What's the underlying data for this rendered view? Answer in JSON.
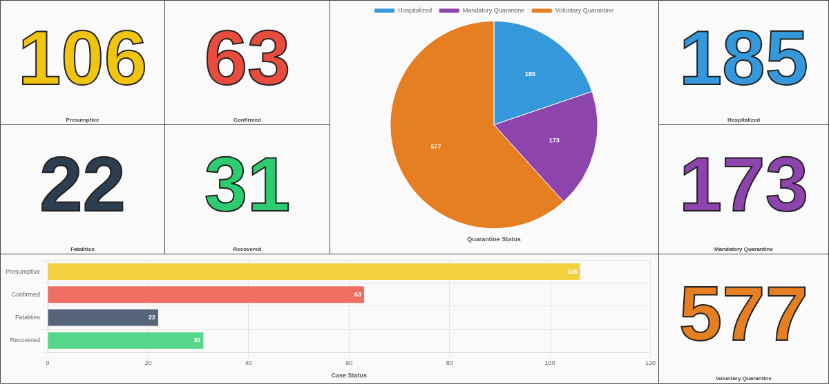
{
  "chart_data": [
    {
      "type": "other",
      "title": "Presumptive",
      "annotations": [
        "106"
      ],
      "color": "#f1c40f"
    },
    {
      "type": "other",
      "title": "Confirmed",
      "annotations": [
        "63"
      ],
      "color": "#e74c3c"
    },
    {
      "type": "pie",
      "title": "Quarantine Status",
      "categories": [
        "Hospitalized",
        "Mandatory Quarantine",
        "Voluntary Quarantine"
      ],
      "values": [
        185,
        173,
        577
      ],
      "colors": [
        "#3498db",
        "#8e44ad",
        "#e67e22"
      ],
      "data_labels": true,
      "legend": "top"
    },
    {
      "type": "other",
      "title": "Hospitalized",
      "annotations": [
        "185"
      ],
      "color": "#3498db"
    },
    {
      "type": "other",
      "title": "Fatalities",
      "annotations": [
        "22"
      ],
      "color": "#2c3e50"
    },
    {
      "type": "other",
      "title": "Recovered",
      "annotations": [
        "31"
      ],
      "color": "#2ecc71"
    },
    {
      "type": "other",
      "title": "Mandatory Quarantine",
      "annotations": [
        "173"
      ],
      "color": "#8e44ad"
    },
    {
      "type": "bar",
      "orientation": "horizontal",
      "xlabel": "Case Status",
      "categories": [
        "Presumptive",
        "Confirmed",
        "Fatalities",
        "Recovered"
      ],
      "values": [
        106,
        63,
        22,
        31
      ],
      "colors": [
        "#f3d03f",
        "#ee6e62",
        "#56657a",
        "#55d68b"
      ],
      "xlim": [
        0,
        120
      ],
      "xticks": [
        0,
        20,
        40,
        60,
        80,
        100,
        120
      ],
      "grid": true,
      "data_labels": true,
      "legend": false
    },
    {
      "type": "other",
      "title": "Voluntary Quarantine",
      "annotations": [
        "577"
      ],
      "color": "#e67e22"
    }
  ]
}
